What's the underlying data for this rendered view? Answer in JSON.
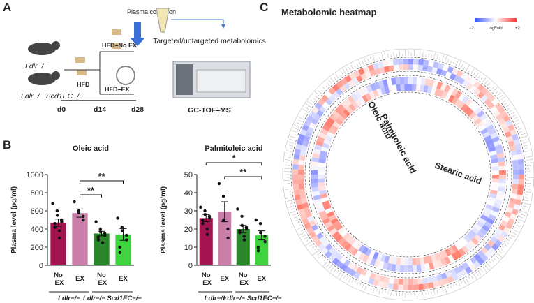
{
  "panel_a": {
    "label": "A",
    "plasma_collection": "Plasma collection",
    "metabolomics": "Targeted/untargeted metabolomics",
    "mouse_1": "Ldlr−/−",
    "mouse_2": "Ldlr−/− Scd1EC−/−",
    "hfd": "HFD",
    "hfd_no_ex": "HFD–No EX",
    "hfd_ex": "HFD–EX",
    "days": [
      "d0",
      "d14",
      "d28"
    ],
    "instrument": "GC-TOF–MS"
  },
  "panel_b": {
    "label": "B"
  },
  "chart_data": [
    {
      "type": "bar",
      "title": "Oleic acid",
      "y_label": "Plasma level (pg/ml)",
      "categories": [
        "No EX",
        "EX",
        "No EX",
        "EX"
      ],
      "colors": [
        "#a3134f",
        "#c97fa9",
        "#2a862a",
        "#3fd43f"
      ],
      "values": [
        470,
        575,
        350,
        340
      ],
      "errors": [
        40,
        45,
        25,
        65
      ],
      "points": [
        [
          680,
          600,
          550,
          500,
          480,
          460,
          420,
          380,
          300
        ],
        [
          700,
          600,
          580,
          540,
          500
        ],
        [
          480,
          400,
          370,
          350,
          330,
          310,
          280,
          250
        ],
        [
          520,
          420,
          380,
          330,
          280,
          200,
          140
        ]
      ],
      "groups": [
        {
          "name": "Ldlr−/−",
          "span": [
            0,
            1
          ]
        },
        {
          "name": "Ldlr−/− Scd1EC−/−",
          "span": [
            2,
            3
          ]
        }
      ],
      "annotations": [
        {
          "text": "**",
          "pair": [
            1,
            2
          ]
        },
        {
          "text": "**",
          "pair": [
            1,
            3
          ]
        }
      ],
      "ylim": [
        0,
        1000
      ],
      "yticks": [
        0,
        200,
        400,
        600,
        800,
        1000
      ]
    },
    {
      "type": "bar",
      "title": "Palmitoleic acid",
      "y_label": "Plasma level (pg/ml)",
      "categories": [
        "No EX",
        "EX",
        "No EX",
        "EX"
      ],
      "colors": [
        "#a3134f",
        "#c97fa9",
        "#2a862a",
        "#3fd43f"
      ],
      "values": [
        26,
        29.5,
        20,
        16.5
      ],
      "errors": [
        2,
        5.5,
        2,
        2.5
      ],
      "points": [
        [
          32,
          30,
          28,
          27,
          26,
          25,
          23,
          20,
          17
        ],
        [
          45,
          38,
          25,
          20,
          15
        ],
        [
          31,
          27,
          22,
          21,
          20,
          19,
          18,
          16,
          14
        ],
        [
          25,
          23,
          18,
          16,
          13,
          10,
          8
        ]
      ],
      "groups": [
        {
          "name": "Ldlr−/−",
          "span": [
            0,
            1
          ]
        },
        {
          "name": "Ldlr−/− Scd1EC−/−",
          "span": [
            2,
            3
          ]
        }
      ],
      "annotations": [
        {
          "text": "**",
          "pair": [
            1,
            3
          ]
        },
        {
          "text": "*",
          "pair": [
            0,
            3
          ]
        }
      ],
      "ylim": [
        0,
        50
      ],
      "yticks": [
        0,
        10,
        20,
        30,
        40,
        50
      ]
    }
  ],
  "panel_c": {
    "label": "C",
    "title": "Metabolomic heatmap",
    "legend_min": "−2",
    "legend_title": "logFold",
    "legend_max": "+2",
    "labels": [
      "Oleic acid",
      "Palmitoleic acid",
      "Stearic acid"
    ]
  }
}
